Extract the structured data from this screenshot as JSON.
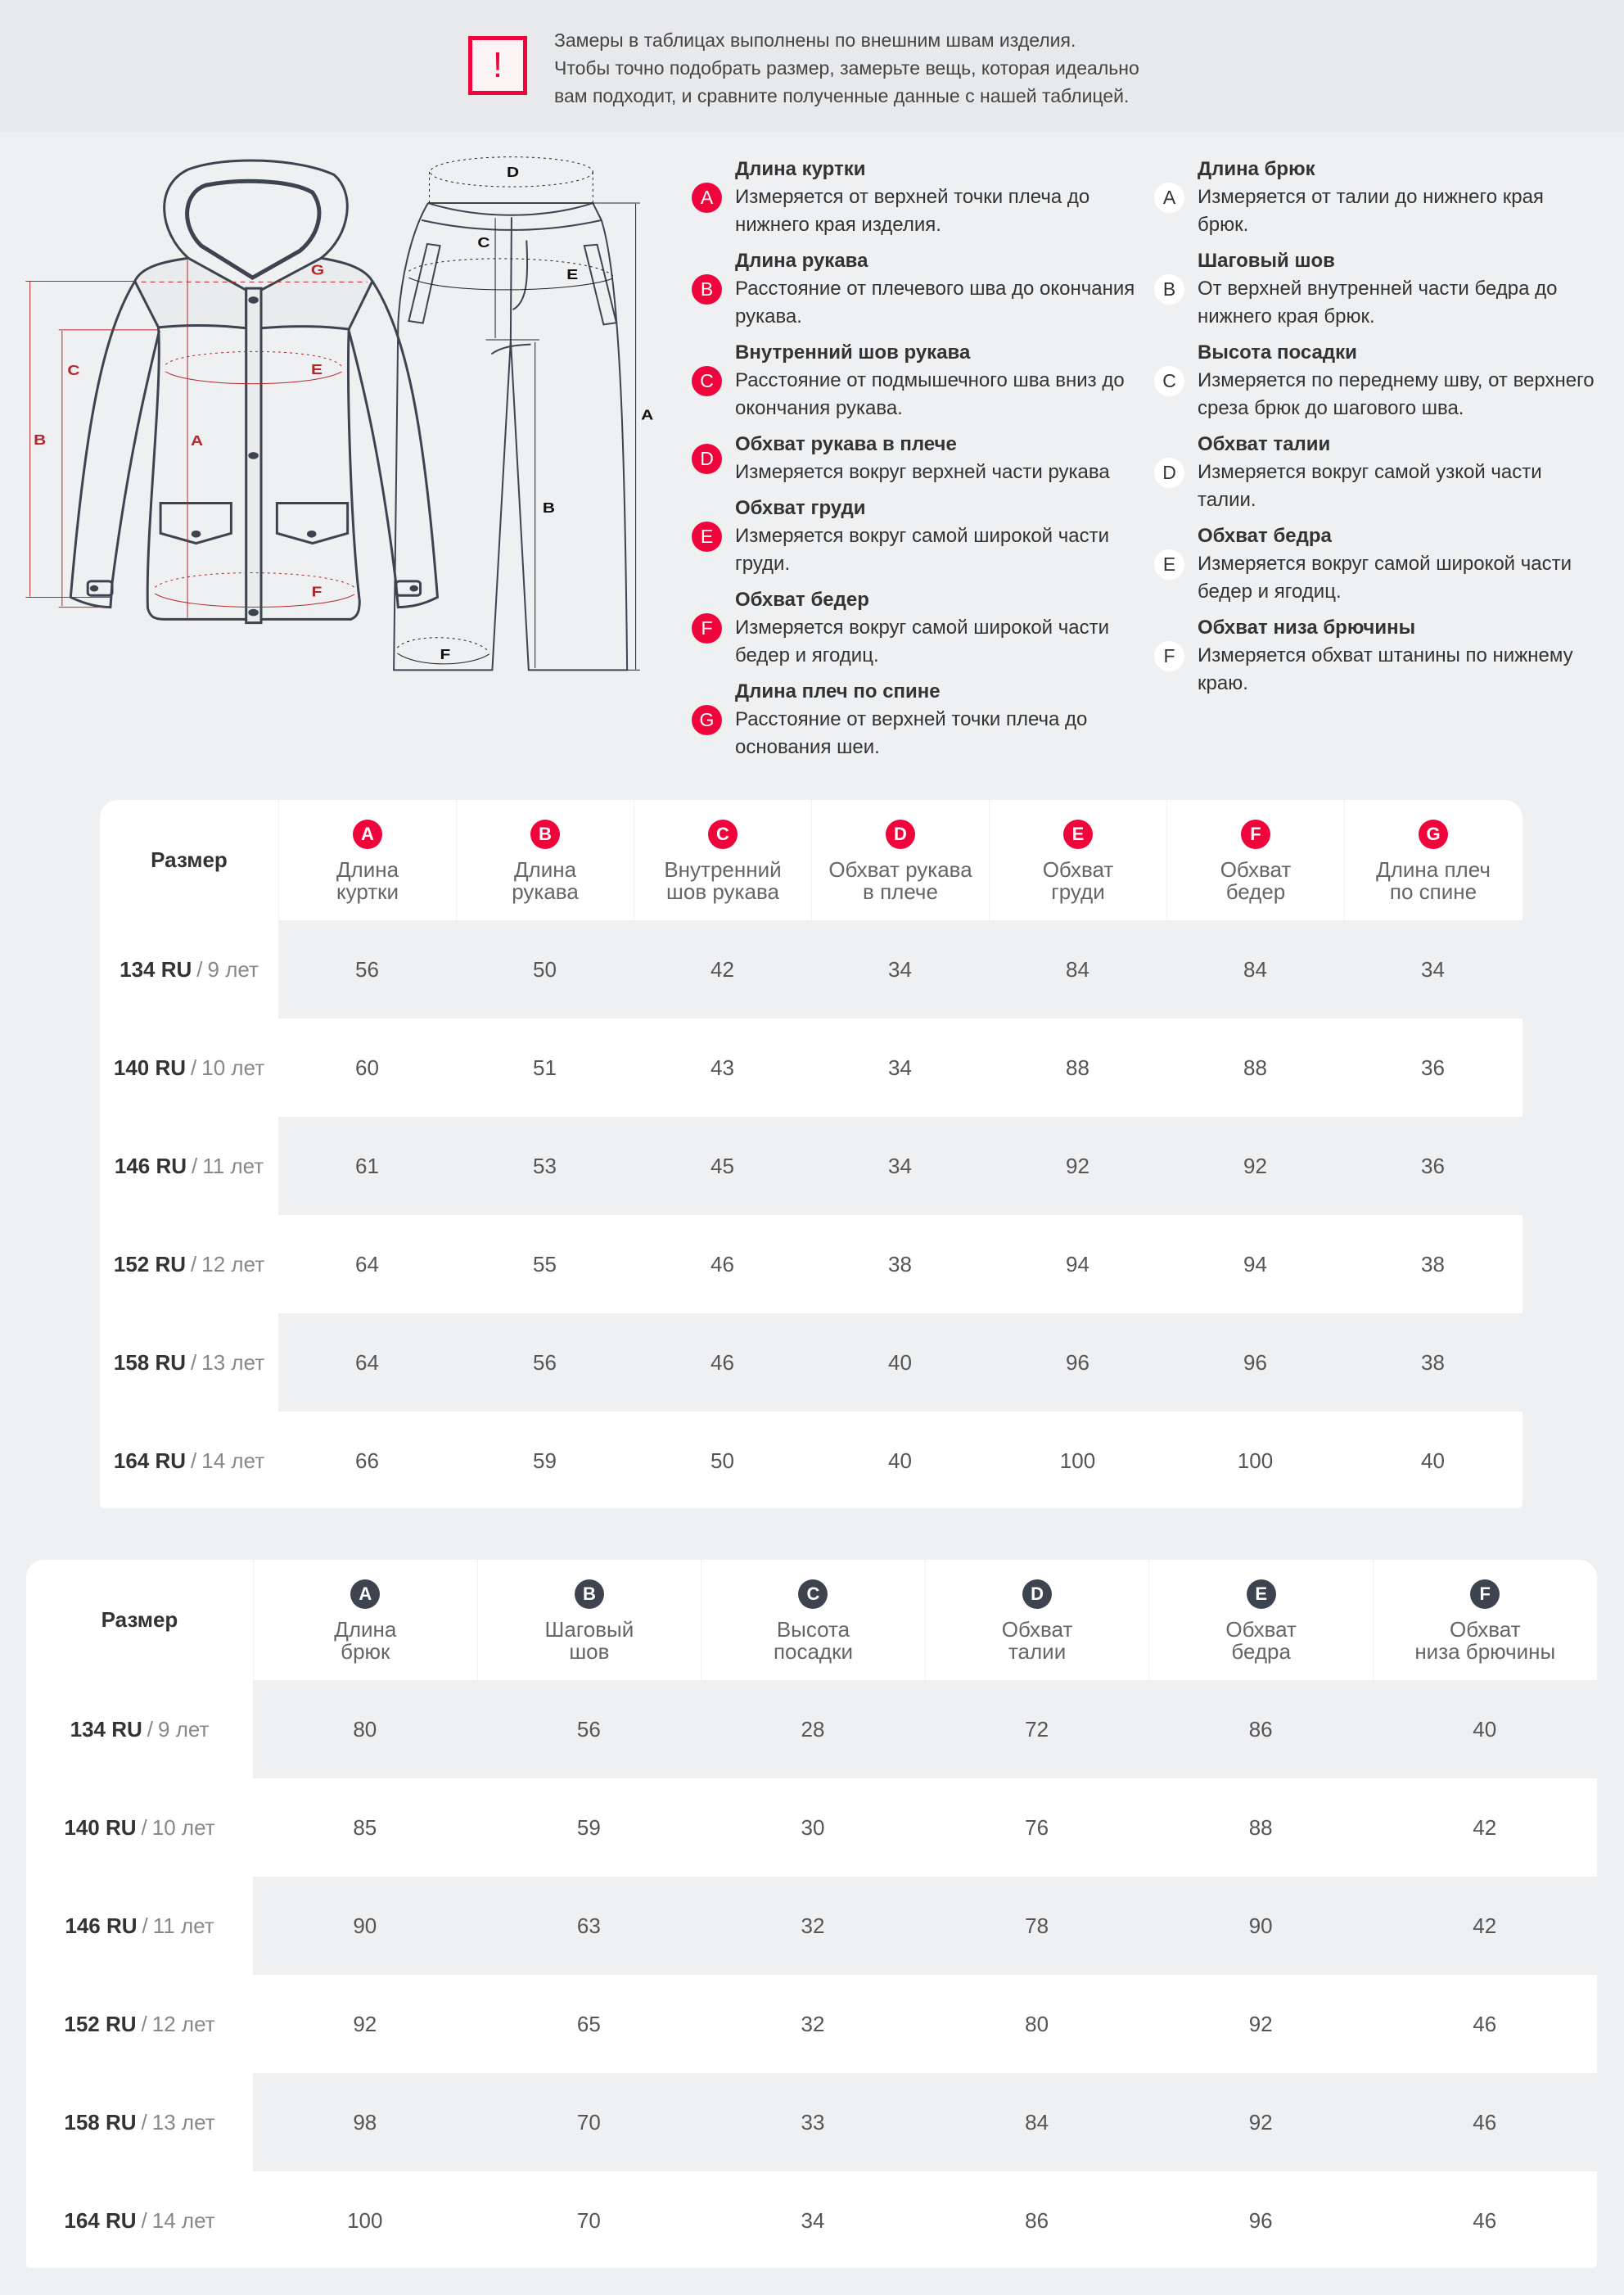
{
  "notice": {
    "icon": "exclamation-icon",
    "accent": "#f0043c",
    "lines": [
      "Замеры в таблицах выполнены по внешним швам изделия.",
      "Чтобы точно подобрать размер, замерьте вещь, которая идеально",
      "вам подходит, и сравните полученные данные с нашей таблицей."
    ]
  },
  "diagram": {
    "jacket_labels": [
      "A",
      "B",
      "C",
      "E",
      "F",
      "G"
    ],
    "pants_labels": [
      "A",
      "B",
      "C",
      "D",
      "E",
      "F"
    ],
    "jacket_color": "#b5262b",
    "pants_color": "#222222"
  },
  "jacket_legend": [
    {
      "badge": "A",
      "title": "Длина куртки",
      "desc": [
        "Измеряется от верхней точки плеча до",
        "нижнего края изделия."
      ]
    },
    {
      "badge": "B",
      "title": "Длина рукава",
      "desc": [
        "Расстояние от плечевого шва до окончания",
        "рукава."
      ]
    },
    {
      "badge": "C",
      "title": "Внутренний шов рукава",
      "desc": [
        "Расстояние от подмышечного шва вниз до",
        "окончания рукава."
      ]
    },
    {
      "badge": "D",
      "title": "Обхват рукава в плече",
      "desc": [
        "Измеряется вокруг верхней части рукава"
      ]
    },
    {
      "badge": "E",
      "title": "Обхват груди",
      "desc": [
        "Измеряется вокруг самой широкой части",
        "груди."
      ]
    },
    {
      "badge": "F",
      "title": "Обхват бедер",
      "desc": [
        "Измеряется вокруг самой широкой части",
        "бедер и ягодиц."
      ]
    },
    {
      "badge": "G",
      "title": "Длина плеч по спине",
      "desc": [
        "Расстояние от верхней точки плеча до",
        "основания шеи."
      ]
    }
  ],
  "pants_legend": [
    {
      "badge": "A",
      "title": "Длина брюк",
      "desc": [
        "Измеряется от талии до нижнего края",
        "брюк."
      ]
    },
    {
      "badge": "B",
      "title": "Шаговый шов",
      "desc": [
        "От верхней внутренней части бедра до",
        "нижнего края брюк."
      ]
    },
    {
      "badge": "C",
      "title": "Высота посадки",
      "desc": [
        "Измеряется по переднему шву, от верхнего",
        "среза брюк до шагового шва."
      ]
    },
    {
      "badge": "D",
      "title": "Обхват талии",
      "desc": [
        "Измеряется вокруг самой узкой части",
        "талии."
      ]
    },
    {
      "badge": "E",
      "title": "Обхват бедра",
      "desc": [
        "Измеряется вокруг самой широкой части",
        "бедер и ягодиц."
      ]
    },
    {
      "badge": "F",
      "title": "Обхват низа брючины",
      "desc": [
        "Измеряется обхват штанины по нижнему",
        "краю."
      ]
    }
  ],
  "jacket_table": {
    "size_header": "Размер",
    "columns": [
      {
        "badge": "A",
        "label": [
          "Длина",
          "куртки"
        ]
      },
      {
        "badge": "B",
        "label": [
          "Длина",
          "рукава"
        ]
      },
      {
        "badge": "C",
        "label": [
          "Внутренний",
          "шов рукава"
        ]
      },
      {
        "badge": "D",
        "label": [
          "Обхват рукава",
          "в плече"
        ]
      },
      {
        "badge": "E",
        "label": [
          "Обхват",
          "груди"
        ]
      },
      {
        "badge": "F",
        "label": [
          "Обхват",
          "бедер"
        ]
      },
      {
        "badge": "G",
        "label": [
          "Длина плеч",
          "по спине"
        ]
      }
    ],
    "rows": [
      {
        "size": "134 RU",
        "age": "9 лет",
        "values": [
          "56",
          "50",
          "42",
          "34",
          "84",
          "84",
          "34"
        ]
      },
      {
        "size": "140 RU",
        "age": "10 лет",
        "values": [
          "60",
          "51",
          "43",
          "34",
          "88",
          "88",
          "36"
        ]
      },
      {
        "size": "146 RU",
        "age": "11 лет",
        "values": [
          "61",
          "53",
          "45",
          "34",
          "92",
          "92",
          "36"
        ]
      },
      {
        "size": "152 RU",
        "age": "12 лет",
        "values": [
          "64",
          "55",
          "46",
          "38",
          "94",
          "94",
          "38"
        ]
      },
      {
        "size": "158 RU",
        "age": "13 лет",
        "values": [
          "64",
          "56",
          "46",
          "40",
          "96",
          "96",
          "38"
        ]
      },
      {
        "size": "164 RU",
        "age": "14 лет",
        "values": [
          "66",
          "59",
          "50",
          "40",
          "100",
          "100",
          "40"
        ]
      }
    ]
  },
  "pants_table": {
    "size_header": "Размер",
    "columns": [
      {
        "badge": "A",
        "label": [
          "Длина",
          "брюк"
        ]
      },
      {
        "badge": "B",
        "label": [
          "Шаговый",
          "шов"
        ]
      },
      {
        "badge": "C",
        "label": [
          "Высота",
          "посадки"
        ]
      },
      {
        "badge": "D",
        "label": [
          "Обхват",
          "талии"
        ]
      },
      {
        "badge": "E",
        "label": [
          "Обхват",
          "бедра"
        ]
      },
      {
        "badge": "F",
        "label": [
          "Обхват",
          "низа брючины"
        ]
      }
    ],
    "rows": [
      {
        "size": "134 RU",
        "age": "9 лет",
        "values": [
          "80",
          "56",
          "28",
          "72",
          "86",
          "40"
        ]
      },
      {
        "size": "140 RU",
        "age": "10 лет",
        "values": [
          "85",
          "59",
          "30",
          "76",
          "88",
          "42"
        ]
      },
      {
        "size": "146 RU",
        "age": "11 лет",
        "values": [
          "90",
          "63",
          "32",
          "78",
          "90",
          "42"
        ]
      },
      {
        "size": "152 RU",
        "age": "12 лет",
        "values": [
          "92",
          "65",
          "32",
          "80",
          "92",
          "46"
        ]
      },
      {
        "size": "158 RU",
        "age": "13 лет",
        "values": [
          "98",
          "70",
          "33",
          "84",
          "92",
          "46"
        ]
      },
      {
        "size": "164 RU",
        "age": "14 лет",
        "values": [
          "100",
          "70",
          "34",
          "86",
          "96",
          "46"
        ]
      }
    ]
  }
}
